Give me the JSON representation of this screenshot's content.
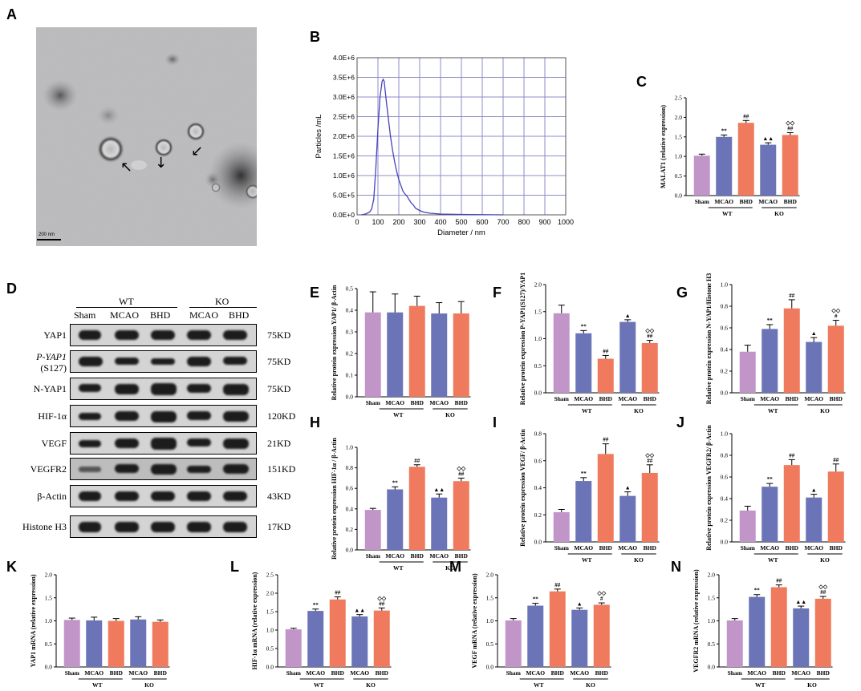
{
  "panel_labels": {
    "A": "A",
    "B": "B",
    "C": "C",
    "D": "D",
    "E": "E",
    "F": "F",
    "G": "G",
    "H": "H",
    "I": "I",
    "J": "J",
    "K": "K",
    "L": "L",
    "M": "M",
    "N": "N"
  },
  "tem": {
    "scale_label": "200 nm"
  },
  "western_blot": {
    "lanes": [
      "Sham",
      "MCAO",
      "BHD",
      "MCAO",
      "BHD"
    ],
    "groups": [
      {
        "name": "WT"
      },
      {
        "name": "KO"
      }
    ],
    "rows": [
      {
        "name": "YAP1",
        "size": "75KD"
      },
      {
        "name": "P-YAP1",
        "name2": "(S127)",
        "size": "75KD"
      },
      {
        "name": "N-YAP1",
        "size": "75KD"
      },
      {
        "name": "HIF-1α",
        "size": "120KD"
      },
      {
        "name": "VEGF",
        "size": "21KD"
      },
      {
        "name": "VEGFR2",
        "size": "151KD"
      },
      {
        "name": "β-Actin",
        "size": "43KD"
      },
      {
        "name": "Histone H3",
        "size": "17KD"
      }
    ]
  },
  "colors": {
    "sham": "#c295c8",
    "wt_mcao": "#6c74b8",
    "wt_bhd": "#ef7a5e",
    "ko_mcao": "#6c74b8",
    "ko_bhd": "#ef7a5e",
    "line": "#4444bb"
  },
  "chart_data": [
    {
      "id": "B",
      "type": "line",
      "xlabel": "Diameter / nm",
      "ylabel": "Particles /mL",
      "xlim": [
        0,
        1000
      ],
      "ylim": [
        0,
        4000000
      ],
      "xticks": [
        "0",
        "100",
        "200",
        "300",
        "400",
        "500",
        "600",
        "700",
        "800",
        "900",
        "1000"
      ],
      "yticks": [
        "0.0E+0",
        "5.0E+5",
        "1.0E+6",
        "1.5E+6",
        "2.0E+6",
        "2.5E+6",
        "3.0E+6",
        "3.5E+6",
        "4.0E+6"
      ],
      "grid": true,
      "x": [
        20,
        40,
        60,
        70,
        80,
        90,
        100,
        110,
        120,
        125,
        130,
        140,
        150,
        160,
        170,
        180,
        190,
        200,
        210,
        220,
        230,
        240,
        250,
        260,
        270,
        280,
        300,
        320,
        350,
        400,
        450,
        500,
        550,
        600,
        650,
        700
      ],
      "y": [
        0,
        20000,
        70000,
        150000,
        400000,
        1200000,
        2200000,
        3000000,
        3400000,
        3450000,
        3400000,
        2900000,
        2450000,
        2000000,
        1650000,
        1350000,
        1100000,
        900000,
        750000,
        600000,
        530000,
        470000,
        380000,
        300000,
        250000,
        170000,
        110000,
        70000,
        40000,
        20000,
        15000,
        10000,
        8000,
        5000,
        3000,
        0
      ]
    },
    {
      "id": "C",
      "type": "bar",
      "ylabel": "MALAT1  (relative expression)",
      "ylim": [
        0,
        2.5
      ],
      "yticks": [
        "0.0",
        "0.5",
        "1.0",
        "1.5",
        "2.0",
        "2.5"
      ],
      "categories": [
        "Sham",
        "MCAO",
        "BHD",
        "MCAO",
        "BHD"
      ],
      "group_labels": [
        "WT",
        "KO"
      ],
      "values": [
        1.02,
        1.5,
        1.86,
        1.3,
        1.55
      ],
      "errors": [
        0.04,
        0.05,
        0.06,
        0.05,
        0.06
      ],
      "annotations": [
        "",
        "**",
        "##",
        "▲▲",
        "◇◇\n##"
      ]
    },
    {
      "id": "E",
      "type": "bar",
      "ylabel": "Relative protein expression YAP1/ β-Actin",
      "ylim": [
        0,
        0.5
      ],
      "yticks": [
        "0.0",
        "0.1",
        "0.2",
        "0.3",
        "0.4",
        "0.5"
      ],
      "categories": [
        "Sham",
        "MCAO",
        "BHD",
        "MCAO",
        "BHD"
      ],
      "group_labels": [
        "WT",
        "KO"
      ],
      "values": [
        0.39,
        0.39,
        0.42,
        0.385,
        0.385
      ],
      "errors": [
        0.095,
        0.085,
        0.045,
        0.05,
        0.055
      ],
      "annotations": [
        "",
        "",
        "",
        "",
        ""
      ]
    },
    {
      "id": "F",
      "type": "bar",
      "ylabel": "Relative protein expression P-YAP1(S127)/YAP1",
      "ylim": [
        0,
        2.0
      ],
      "yticks": [
        "0.0",
        "0.5",
        "1.0",
        "1.5",
        "2.0"
      ],
      "categories": [
        "Sham",
        "MCAO",
        "BHD",
        "MCAO",
        "BHD"
      ],
      "group_labels": [
        "WT",
        "KO"
      ],
      "values": [
        1.47,
        1.1,
        0.63,
        1.31,
        0.92
      ],
      "errors": [
        0.15,
        0.05,
        0.06,
        0.04,
        0.05
      ],
      "annotations": [
        "",
        "**",
        "##",
        "▲",
        "◇◇\n##"
      ]
    },
    {
      "id": "G",
      "type": "bar",
      "ylabel": "Relative protein expression N-YAP1/Histone H3",
      "ylim": [
        0,
        1.0
      ],
      "yticks": [
        "0.0",
        "0.2",
        "0.4",
        "0.6",
        "0.8",
        "1.0"
      ],
      "categories": [
        "Sham",
        "MCAO",
        "BHD",
        "MCAO",
        "BHD"
      ],
      "group_labels": [
        "WT",
        "KO"
      ],
      "values": [
        0.38,
        0.59,
        0.78,
        0.47,
        0.62
      ],
      "errors": [
        0.06,
        0.04,
        0.08,
        0.04,
        0.05
      ],
      "annotations": [
        "",
        "**",
        "##",
        "▲",
        "◇◇\n#"
      ]
    },
    {
      "id": "H",
      "type": "bar",
      "ylabel": "Relative protein expression HIF-1α / β-Actin",
      "ylim": [
        0,
        1.0
      ],
      "yticks": [
        "0.0",
        "0.2",
        "0.4",
        "0.6",
        "0.8",
        "1.0"
      ],
      "categories": [
        "Sham",
        "MCAO",
        "BHD",
        "MCAO",
        "BHD"
      ],
      "group_labels": [
        "WT",
        "KO"
      ],
      "values": [
        0.39,
        0.59,
        0.81,
        0.51,
        0.67
      ],
      "errors": [
        0.015,
        0.025,
        0.02,
        0.035,
        0.03
      ],
      "annotations": [
        "",
        "**",
        "##",
        "▲▲",
        "◇◇\n##"
      ]
    },
    {
      "id": "I",
      "type": "bar",
      "ylabel": "Relative protein expression VEGF/ β-Actin",
      "ylim": [
        0,
        0.8
      ],
      "yticks": [
        "0.0",
        "0.2",
        "0.4",
        "0.6",
        "0.8"
      ],
      "categories": [
        "Sham",
        "MCAO",
        "BHD",
        "MCAO",
        "BHD"
      ],
      "group_labels": [
        "WT",
        "KO"
      ],
      "values": [
        0.22,
        0.45,
        0.65,
        0.34,
        0.51
      ],
      "errors": [
        0.02,
        0.025,
        0.075,
        0.03,
        0.06
      ],
      "annotations": [
        "",
        "**",
        "##",
        "▲",
        "◇◇\n##"
      ]
    },
    {
      "id": "J",
      "type": "bar",
      "ylabel": "Relative protein expression VEGFR2/ β-Actin",
      "ylim": [
        0,
        1.0
      ],
      "yticks": [
        "0.0",
        "0.2",
        "0.4",
        "0.6",
        "0.8",
        "1.0"
      ],
      "categories": [
        "Sham",
        "MCAO",
        "BHD",
        "MCAO",
        "BHD"
      ],
      "group_labels": [
        "WT",
        "KO"
      ],
      "values": [
        0.29,
        0.51,
        0.71,
        0.41,
        0.65
      ],
      "errors": [
        0.04,
        0.03,
        0.05,
        0.03,
        0.07
      ],
      "annotations": [
        "",
        "**",
        "##",
        "▲",
        "##"
      ]
    },
    {
      "id": "K",
      "type": "bar",
      "ylabel": "YAP1 mRNA (relative expression)",
      "ylim": [
        0,
        2.0
      ],
      "yticks": [
        "0.0",
        "0.5",
        "1.0",
        "1.5",
        "2.0"
      ],
      "categories": [
        "Sham",
        "MCAO",
        "BHD",
        "MCAO",
        "BHD"
      ],
      "group_labels": [
        "WT",
        "KO"
      ],
      "values": [
        1.02,
        1.01,
        1.0,
        1.03,
        0.98
      ],
      "errors": [
        0.04,
        0.07,
        0.05,
        0.06,
        0.04
      ],
      "annotations": [
        "",
        "",
        "",
        "",
        ""
      ]
    },
    {
      "id": "L",
      "type": "bar",
      "ylabel": "HIF-1α mRNA (relative expression)",
      "ylim": [
        0,
        2.5
      ],
      "yticks": [
        "0.0",
        "0.5",
        "1.0",
        "1.5",
        "2.0",
        "2.5"
      ],
      "categories": [
        "Sham",
        "MCAO",
        "BHD",
        "MCAO",
        "BHD"
      ],
      "group_labels": [
        "WT",
        "KO"
      ],
      "values": [
        1.02,
        1.52,
        1.83,
        1.37,
        1.53
      ],
      "errors": [
        0.03,
        0.05,
        0.07,
        0.05,
        0.07
      ],
      "annotations": [
        "",
        "**",
        "##",
        "▲▲",
        "◇◇\n##"
      ]
    },
    {
      "id": "M",
      "type": "bar",
      "ylabel": "VEGF mRNA (relative expression)",
      "ylim": [
        0,
        2.0
      ],
      "yticks": [
        "0.0",
        "0.5",
        "1.0",
        "1.5",
        "2.0"
      ],
      "categories": [
        "Sham",
        "MCAO",
        "BHD",
        "MCAO",
        "BHD"
      ],
      "group_labels": [
        "WT",
        "KO"
      ],
      "values": [
        1.01,
        1.33,
        1.64,
        1.24,
        1.35
      ],
      "errors": [
        0.04,
        0.05,
        0.05,
        0.04,
        0.04
      ],
      "annotations": [
        "",
        "**",
        "##",
        "▲",
        "◇◇\n#"
      ]
    },
    {
      "id": "N",
      "type": "bar",
      "ylabel": "VEGFR2 mRNA (relative expression)",
      "ylim": [
        0,
        2.0
      ],
      "yticks": [
        "0.0",
        "0.5",
        "1.0",
        "1.5",
        "2.0"
      ],
      "categories": [
        "Sham",
        "MCAO",
        "BHD",
        "MCAO",
        "BHD"
      ],
      "group_labels": [
        "WT",
        "KO"
      ],
      "values": [
        1.01,
        1.52,
        1.73,
        1.27,
        1.48
      ],
      "errors": [
        0.04,
        0.05,
        0.05,
        0.05,
        0.05
      ],
      "annotations": [
        "",
        "**",
        "##",
        "▲▲",
        "◇◇\n##"
      ]
    }
  ]
}
